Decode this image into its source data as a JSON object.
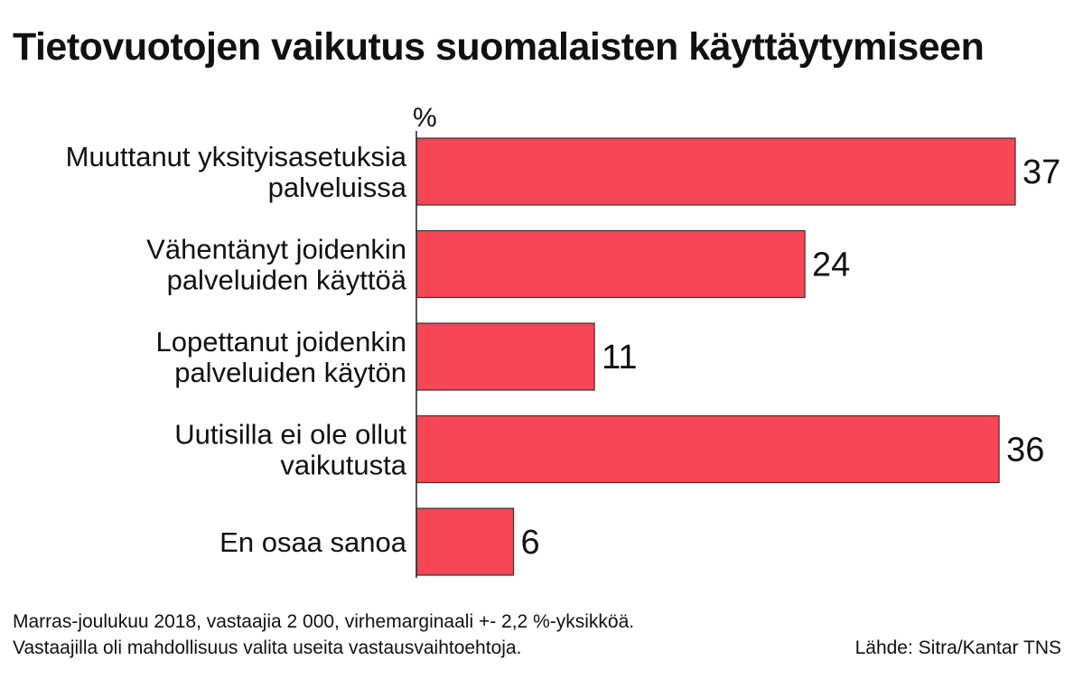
{
  "title": "Tietovuotojen vaikutus suomalaisten käyttäytymiseen",
  "footnote_lines": [
    "Marras-joulukuu 2018, vastaajia 2 000, virhemarginaali +- 2,2 %-yksikköä.",
    "Vastaajilla oli mahdollisuus valita useita vastausvaihtoehtoja."
  ],
  "source": "Lähde: Sitra/Kantar TNS",
  "colors": {
    "bar": "#f74655",
    "bar_stroke": "#333333",
    "axis": "#222222"
  },
  "chart_data": {
    "type": "bar",
    "orientation": "horizontal",
    "unit_label": "%",
    "categories": [
      [
        "Muuttanut yksityisasetuksia",
        "palveluissa"
      ],
      [
        "Vähentänyt joidenkin",
        "palveluiden käyttöä"
      ],
      [
        "Lopettanut joidenkin",
        "palveluiden käytön"
      ],
      [
        "Uutisilla ei ole ollut",
        "vaikutusta"
      ],
      [
        "En osaa sanoa"
      ]
    ],
    "values": [
      37,
      24,
      11,
      36,
      6
    ],
    "xlim": [
      0,
      37
    ],
    "grid": false,
    "legend": "none"
  }
}
